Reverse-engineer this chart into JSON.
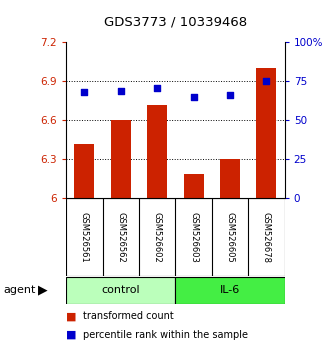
{
  "title": "GDS3773 / 10339468",
  "samples": [
    "GSM526561",
    "GSM526562",
    "GSM526602",
    "GSM526603",
    "GSM526605",
    "GSM526678"
  ],
  "bar_values": [
    6.42,
    6.6,
    6.72,
    6.19,
    6.3,
    7.0
  ],
  "dot_values": [
    68,
    69,
    71,
    65,
    66,
    75
  ],
  "bar_color": "#cc2200",
  "dot_color": "#0000cc",
  "ylim_left": [
    6.0,
    7.2
  ],
  "ylim_right": [
    0,
    100
  ],
  "yticks_left": [
    6.0,
    6.3,
    6.6,
    6.9,
    7.2
  ],
  "ytick_labels_left": [
    "6",
    "6.3",
    "6.6",
    "6.9",
    "7.2"
  ],
  "yticks_right": [
    0,
    25,
    50,
    75,
    100
  ],
  "ytick_labels_right": [
    "0",
    "25",
    "50",
    "75",
    "100%"
  ],
  "groups": [
    {
      "label": "control",
      "indices": [
        0,
        1,
        2
      ],
      "color": "#bbffbb"
    },
    {
      "label": "IL-6",
      "indices": [
        3,
        4,
        5
      ],
      "color": "#44ee44"
    }
  ],
  "agent_label": "agent",
  "legend_bar": "transformed count",
  "legend_dot": "percentile rank within the sample",
  "background_color": "#ffffff",
  "tick_area_color": "#cccccc"
}
